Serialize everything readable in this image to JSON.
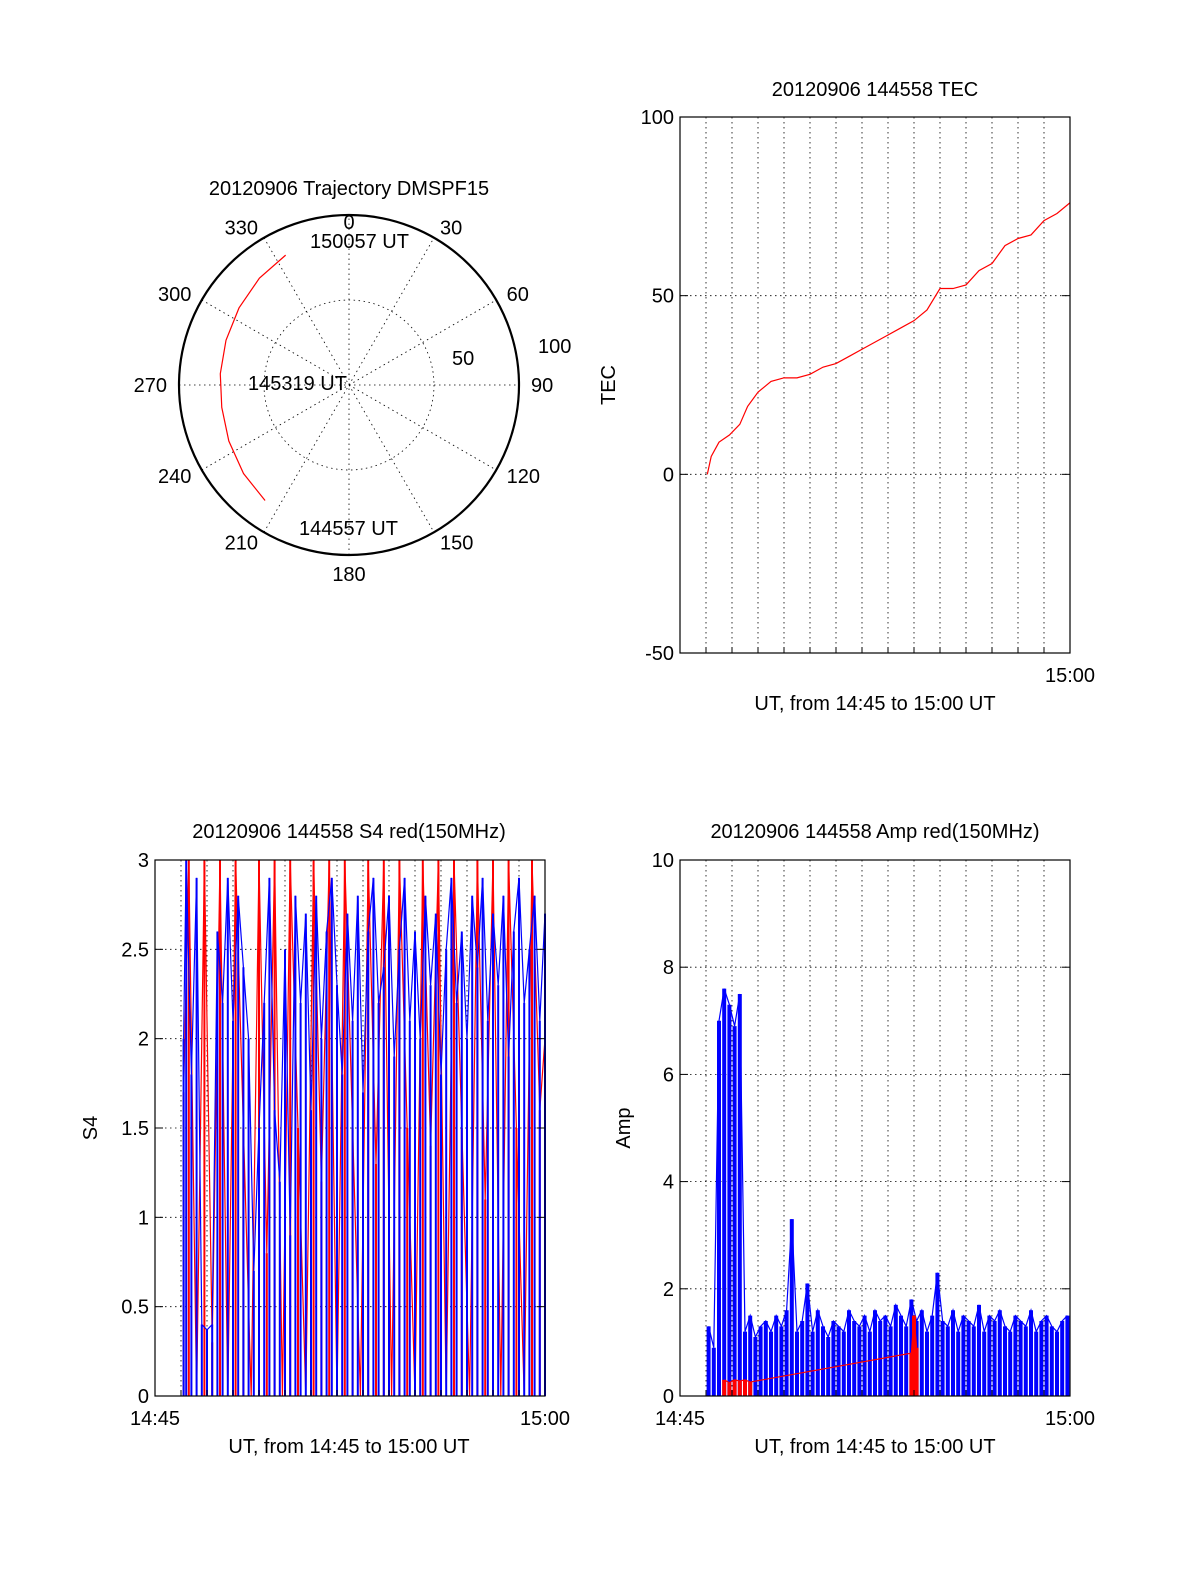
{
  "colors": {
    "red": "#ff0000",
    "blue": "#0000ff",
    "axis": "#000000"
  },
  "chart_data": [
    {
      "type": "polar",
      "title": "20120906 Trajectory DMSPF15",
      "angle_labels": [
        "0",
        "30",
        "60",
        "90",
        "120",
        "150",
        "180",
        "210",
        "240",
        "270",
        "300",
        "330"
      ],
      "radial_labels": [
        "50",
        "100"
      ],
      "radial_max": 100,
      "series": [
        {
          "color": "red",
          "points": [
            {
              "azimuth": 334,
              "elevation": 15
            },
            {
              "azimuth": 320,
              "elevation": 18
            },
            {
              "azimuth": 305,
              "elevation": 21
            },
            {
              "azimuth": 290,
              "elevation": 23
            },
            {
              "azimuth": 275,
              "elevation": 24
            },
            {
              "azimuth": 260,
              "elevation": 24
            },
            {
              "azimuth": 245,
              "elevation": 22
            },
            {
              "azimuth": 230,
              "elevation": 19
            },
            {
              "azimuth": 216,
              "elevation": 16
            }
          ]
        }
      ],
      "annotations": [
        "150057 UT",
        "145319 UT",
        "144557 UT"
      ]
    },
    {
      "type": "line",
      "title": "20120906 144558 TEC",
      "ylabel": "TEC",
      "xlabel": "UT, from 14:45 to 15:00 UT",
      "x_tick_labels": [
        "15:00"
      ],
      "y_ticks": [
        "100",
        "50",
        "0",
        "-50"
      ],
      "ylim": [
        -50,
        100
      ],
      "xlim_minutes": [
        0,
        15
      ],
      "grid": true,
      "series": [
        {
          "color": "red",
          "x_minutes": [
            1.05,
            1.2,
            1.5,
            1.9,
            2.3,
            2.6,
            3.0,
            3.5,
            4.0,
            4.5,
            5.0,
            5.5,
            6.0,
            6.5,
            7.0,
            7.5,
            8.0,
            8.5,
            9.0,
            9.5,
            10.0,
            10.5,
            11.0,
            11.5,
            12.0,
            12.5,
            13.0,
            13.5,
            14.0,
            14.5,
            15.0
          ],
          "values": [
            0,
            5,
            9,
            11,
            14,
            19,
            23,
            26,
            27,
            27,
            28,
            30,
            31,
            33,
            35,
            37,
            39,
            41,
            43,
            46,
            52,
            52,
            53,
            57,
            59,
            64,
            66,
            67,
            71,
            73,
            76
          ]
        }
      ]
    },
    {
      "type": "line",
      "title": "20120906 144558 S4 red(150MHz)",
      "ylabel": "S4",
      "xlabel": "UT, from 14:45 to 15:00 UT",
      "x_tick_labels": [
        "14:45",
        "15:00"
      ],
      "y_ticks": [
        "0",
        "0.5",
        "1",
        "1.5",
        "2",
        "2.5",
        "3"
      ],
      "ylim": [
        0,
        3
      ],
      "xlim_minutes": [
        0,
        15
      ],
      "grid": true,
      "series": [
        {
          "color": "red",
          "x_minutes": [
            1.1,
            1.3,
            1.6,
            1.9,
            2.2,
            2.5,
            2.8,
            3.1,
            3.4,
            3.7,
            4.0,
            4.3,
            4.6,
            4.9,
            5.2,
            5.5,
            5.8,
            6.1,
            6.4,
            6.7,
            7.0,
            7.3,
            7.6,
            7.9,
            8.2,
            8.5,
            8.8,
            9.1,
            9.4,
            9.7,
            10.0,
            10.3,
            10.6,
            10.9,
            11.2,
            11.5,
            11.8,
            12.1,
            12.4,
            12.7,
            13.0,
            13.3,
            13.6,
            13.9,
            14.2,
            14.5,
            14.8,
            15.0
          ],
          "values": [
            1.7,
            3.0,
            0.0,
            3.0,
            0.3,
            3.0,
            0.0,
            3.0,
            1.5,
            0.0,
            3.0,
            0.8,
            3.0,
            0.0,
            3.0,
            1.5,
            0.0,
            3.0,
            1.2,
            3.0,
            0.0,
            3.0,
            1.5,
            0.0,
            3.0,
            1.3,
            3.0,
            0.0,
            3.0,
            1.5,
            0.0,
            3.0,
            1.4,
            3.0,
            0.0,
            3.0,
            1.5,
            0.0,
            3.0,
            1.1,
            3.0,
            0.0,
            3.0,
            1.5,
            0.0,
            3.0,
            1.6,
            2.0
          ]
        },
        {
          "color": "blue",
          "x_minutes": [
            1.1,
            1.2,
            1.4,
            1.6,
            1.8,
            2.0,
            2.2,
            2.4,
            2.6,
            2.8,
            3.0,
            3.2,
            3.4,
            3.6,
            3.8,
            4.0,
            4.2,
            4.4,
            4.6,
            4.8,
            5.0,
            5.2,
            5.4,
            5.6,
            5.8,
            6.0,
            6.2,
            6.4,
            6.6,
            6.8,
            7.0,
            7.2,
            7.4,
            7.6,
            7.8,
            8.0,
            8.2,
            8.4,
            8.6,
            8.8,
            9.0,
            9.2,
            9.4,
            9.6,
            9.8,
            10.0,
            10.2,
            10.4,
            10.6,
            10.8,
            11.0,
            11.2,
            11.4,
            11.6,
            11.8,
            12.0,
            12.2,
            12.4,
            12.6,
            12.8,
            13.0,
            13.2,
            13.4,
            13.6,
            13.8,
            14.0,
            14.2,
            14.4,
            14.6,
            14.8,
            15.0
          ],
          "values": [
            2.0,
            3.0,
            1.8,
            2.9,
            0.4,
            0.37,
            0.4,
            2.6,
            2.2,
            2.9,
            2.1,
            2.8,
            2.4,
            2.0,
            0.7,
            1.5,
            2.2,
            2.9,
            1.6,
            1.2,
            2.5,
            0.9,
            2.8,
            2.2,
            2.7,
            1.6,
            2.8,
            2.0,
            2.6,
            2.9,
            2.3,
            1.8,
            2.7,
            2.1,
            2.8,
            1.7,
            2.6,
            2.9,
            2.2,
            2.4,
            2.8,
            1.9,
            2.5,
            2.9,
            2.1,
            2.6,
            2.0,
            2.8,
            2.3,
            2.7,
            1.8,
            2.5,
            2.9,
            2.2,
            2.6,
            2.0,
            2.8,
            2.4,
            2.9,
            2.1,
            2.7,
            2.3,
            2.8,
            1.9,
            2.6,
            2.9,
            2.2,
            2.5,
            2.8,
            2.1,
            2.7
          ]
        }
      ]
    },
    {
      "type": "line",
      "title": "20120906 144558 Amp red(150MHz)",
      "ylabel": "Amp",
      "xlabel": "UT, from 14:45 to 15:00 UT",
      "x_tick_labels": [
        "14:45",
        "15:00"
      ],
      "y_ticks": [
        "0",
        "2",
        "4",
        "6",
        "8",
        "10"
      ],
      "ylim": [
        0,
        10
      ],
      "xlim_minutes": [
        0,
        15
      ],
      "grid": true,
      "series": [
        {
          "color": "blue",
          "x_minutes": [
            1.1,
            1.3,
            1.5,
            1.7,
            1.9,
            2.1,
            2.3,
            2.5,
            2.7,
            2.9,
            3.1,
            3.3,
            3.5,
            3.7,
            3.9,
            4.1,
            4.3,
            4.5,
            4.7,
            4.9,
            5.1,
            5.3,
            5.5,
            5.7,
            5.9,
            6.1,
            6.3,
            6.5,
            6.7,
            6.9,
            7.1,
            7.3,
            7.5,
            7.7,
            7.9,
            8.1,
            8.3,
            8.5,
            8.7,
            8.9,
            9.1,
            9.3,
            9.5,
            9.7,
            9.9,
            10.1,
            10.3,
            10.5,
            10.7,
            10.9,
            11.1,
            11.3,
            11.5,
            11.7,
            11.9,
            12.1,
            12.3,
            12.5,
            12.7,
            12.9,
            13.1,
            13.3,
            13.5,
            13.7,
            13.9,
            14.1,
            14.3,
            14.5,
            14.7,
            14.9
          ],
          "values": [
            1.3,
            0.9,
            7.0,
            7.6,
            7.3,
            6.9,
            7.5,
            1.2,
            1.5,
            1.1,
            1.3,
            1.4,
            1.2,
            1.5,
            1.3,
            1.6,
            3.3,
            1.2,
            1.4,
            2.1,
            1.2,
            1.6,
            1.3,
            1.1,
            1.4,
            1.3,
            1.2,
            1.6,
            1.4,
            1.3,
            1.5,
            1.2,
            1.6,
            1.4,
            1.5,
            1.3,
            1.7,
            1.5,
            1.3,
            1.8,
            1.4,
            1.6,
            1.2,
            1.5,
            2.3,
            1.4,
            1.3,
            1.6,
            1.2,
            1.5,
            1.4,
            1.3,
            1.7,
            1.2,
            1.5,
            1.4,
            1.6,
            1.3,
            1.2,
            1.5,
            1.4,
            1.3,
            1.6,
            1.2,
            1.4,
            1.5,
            1.3,
            1.2,
            1.4,
            1.5
          ]
        },
        {
          "color": "red",
          "x_minutes": [
            1.7,
            1.9,
            2.1,
            2.3,
            2.5,
            2.7,
            8.9,
            9.0,
            9.1
          ],
          "values": [
            0.3,
            0.25,
            0.3,
            0.28,
            0.3,
            0.26,
            0.8,
            1.5,
            0.9
          ]
        }
      ]
    }
  ]
}
